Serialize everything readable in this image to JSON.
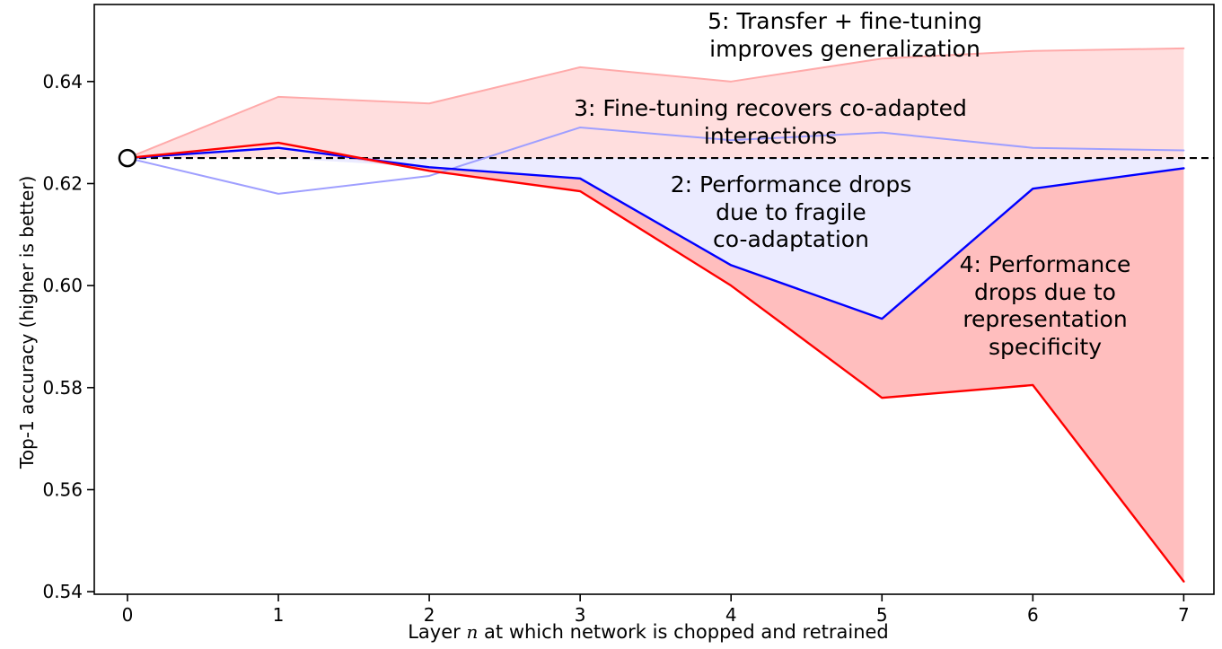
{
  "chart_data": {
    "type": "line",
    "title": "",
    "xlabel": {
      "pre": "Layer ",
      "var": "n",
      "post": " at which network is chopped and retrained"
    },
    "ylabel": "Top-1 accuracy (higher is better)",
    "x": [
      0,
      1,
      2,
      3,
      4,
      5,
      6,
      7
    ],
    "xlim": [
      -0.22,
      7.2
    ],
    "ylim": [
      0.5395,
      0.6551
    ],
    "xticks": [
      0,
      1,
      2,
      3,
      4,
      5,
      6,
      7
    ],
    "xtick_labels": [
      "0",
      "1",
      "2",
      "3",
      "4",
      "5",
      "6",
      "7"
    ],
    "yticks": [
      0.54,
      0.56,
      0.58,
      0.6,
      0.62,
      0.64
    ],
    "ytick_labels": [
      "0.54",
      "0.56",
      "0.58",
      "0.60",
      "0.62",
      "0.64"
    ],
    "grid": false,
    "legend": "none",
    "baseline": {
      "value": 0.625,
      "style": "dashed",
      "color": "#000000",
      "marker": {
        "x": 0,
        "y": 0.625,
        "shape": "circle-open",
        "fill": "#ffffff",
        "edge": "#000000"
      }
    },
    "series": [
      {
        "key": "s5",
        "name": "5: Transfer + fine-tuning improves generalization",
        "color": "#ffaaaa",
        "width": 2,
        "values": [
          0.625,
          0.637,
          0.6357,
          0.6428,
          0.64,
          0.6445,
          0.646,
          0.6465
        ]
      },
      {
        "key": "s3",
        "name": "3: Fine-tuning recovers co-adapted interactions",
        "color": "#9f9fff",
        "width": 2,
        "values": [
          0.625,
          0.618,
          0.6215,
          0.631,
          0.6285,
          0.63,
          0.627,
          0.6265
        ]
      },
      {
        "key": "s2",
        "name": "2: Performance drops due to fragile co-adaptation",
        "color": "#0000ff",
        "width": 2.4,
        "values": [
          0.625,
          0.627,
          0.6232,
          0.621,
          0.604,
          0.5935,
          0.619,
          0.623
        ]
      },
      {
        "key": "s4",
        "name": "4: Performance drops due to representation specificity",
        "color": "#ff0000",
        "width": 2.4,
        "values": [
          0.625,
          0.628,
          0.6225,
          0.6185,
          0.6,
          0.578,
          0.5805,
          0.542
        ]
      }
    ],
    "fills": [
      {
        "top": "s5",
        "bottom": "base",
        "color": "rgba(255,60,60,0.17)",
        "name": "transfer-finetune-gain"
      },
      {
        "top": "base",
        "bottom": "s2",
        "color": "rgba(70,70,255,0.11)",
        "name": "fragile-coadaptation-drop"
      },
      {
        "top": "s2",
        "bottom": "s4",
        "color": "rgba(255,40,40,0.30)",
        "name": "representation-specificity-drop"
      }
    ],
    "annotations": [
      {
        "id": "ann5",
        "text": "5: Transfer + fine-tuning improves generalization"
      },
      {
        "id": "ann3",
        "text": "3: Fine-tuning recovers co-adapted interactions"
      },
      {
        "id": "ann2",
        "text": "2: Performance drops\ndue to fragile\nco-adaptation"
      },
      {
        "id": "ann4",
        "text": "4: Performance\ndrops due to\nrepresentation\nspecificity"
      }
    ]
  }
}
